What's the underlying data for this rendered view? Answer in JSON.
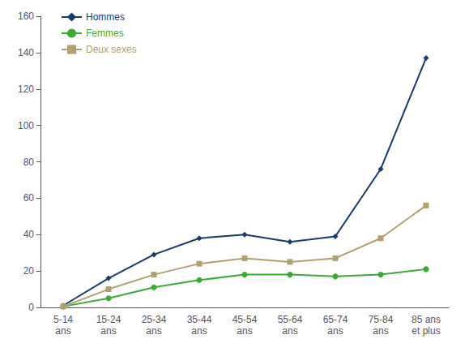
{
  "chart_data": {
    "type": "line",
    "categories": [
      "5-14\nans",
      "15-24\nans",
      "25-34\nans",
      "35-44\nans",
      "45-54\nans",
      "55-64\nans",
      "65-74\nans",
      "75-84\nans",
      "85 ans\net plus"
    ],
    "series": [
      {
        "name": "Hommes",
        "color": "#1a3a6e",
        "marker": "diamond",
        "values": [
          1,
          16,
          29,
          38,
          40,
          36,
          39,
          76,
          137
        ]
      },
      {
        "name": "Femmes",
        "color": "#3aaa35",
        "marker": "circle",
        "values": [
          0.5,
          5,
          11,
          15,
          18,
          18,
          17,
          18,
          21
        ]
      },
      {
        "name": "Deux sexes",
        "color": "#b0a070",
        "marker": "square",
        "values": [
          0.5,
          10,
          18,
          24,
          27,
          25,
          27,
          38,
          56
        ]
      }
    ],
    "ylim": [
      0,
      160
    ],
    "yticks": [
      0,
      20,
      40,
      60,
      80,
      100,
      120,
      140,
      160
    ],
    "grid": false,
    "legend": "upper left"
  }
}
